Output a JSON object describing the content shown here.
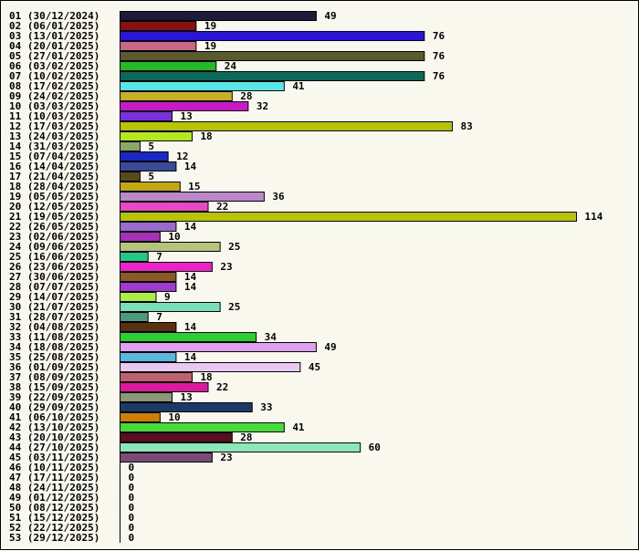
{
  "chart_data": {
    "type": "bar",
    "orientation": "horizontal",
    "title": "",
    "xlabel": "",
    "ylabel": "",
    "xlim": [
      0,
      114
    ],
    "grid": false,
    "legend": "none",
    "categories": [
      "01 (30/12/2024)",
      "02 (06/01/2025)",
      "03 (13/01/2025)",
      "04 (20/01/2025)",
      "05 (27/01/2025)",
      "06 (03/02/2025)",
      "07 (10/02/2025)",
      "08 (17/02/2025)",
      "09 (24/02/2025)",
      "10 (03/03/2025)",
      "11 (10/03/2025)",
      "12 (17/03/2025)",
      "13 (24/03/2025)",
      "14 (31/03/2025)",
      "15 (07/04/2025)",
      "16 (14/04/2025)",
      "17 (21/04/2025)",
      "18 (28/04/2025)",
      "19 (05/05/2025)",
      "20 (12/05/2025)",
      "21 (19/05/2025)",
      "22 (26/05/2025)",
      "23 (02/06/2025)",
      "24 (09/06/2025)",
      "25 (16/06/2025)",
      "26 (23/06/2025)",
      "27 (30/06/2025)",
      "28 (07/07/2025)",
      "29 (14/07/2025)",
      "30 (21/07/2025)",
      "31 (28/07/2025)",
      "32 (04/08/2025)",
      "33 (11/08/2025)",
      "34 (18/08/2025)",
      "35 (25/08/2025)",
      "36 (01/09/2025)",
      "37 (08/09/2025)",
      "38 (15/09/2025)",
      "39 (22/09/2025)",
      "40 (29/09/2025)",
      "41 (06/10/2025)",
      "42 (13/10/2025)",
      "43 (20/10/2025)",
      "44 (27/10/2025)",
      "45 (03/11/2025)",
      "46 (10/11/2025)",
      "47 (17/11/2025)",
      "48 (24/11/2025)",
      "49 (01/12/2025)",
      "50 (08/12/2025)",
      "51 (15/12/2025)",
      "52 (22/12/2025)",
      "53 (29/12/2025)"
    ],
    "values": [
      49,
      19,
      76,
      19,
      76,
      24,
      76,
      41,
      28,
      32,
      13,
      83,
      18,
      5,
      12,
      14,
      5,
      15,
      36,
      22,
      114,
      14,
      10,
      25,
      7,
      23,
      14,
      14,
      9,
      25,
      7,
      14,
      34,
      49,
      14,
      45,
      18,
      22,
      13,
      33,
      10,
      41,
      28,
      60,
      23,
      0,
      0,
      0,
      0,
      0,
      0,
      0,
      0
    ],
    "colors": [
      "#1c1c3a",
      "#8b1010",
      "#2a14e0",
      "#cc6688",
      "#5a5a2a",
      "#22bb22",
      "#0a6a5a",
      "#55e8e8",
      "#c8b020",
      "#c818c8",
      "#7a30e0",
      "#b8c400",
      "#b4e818",
      "#88aa66",
      "#1a28c8",
      "#3a4a98",
      "#5a4a1a",
      "#c4a810",
      "#bb88cc",
      "#e848c8",
      "#b8c400",
      "#9a6ad0",
      "#a830b8",
      "#b4c478",
      "#22c888",
      "#ee22cc",
      "#8a5a28",
      "#a03ad0",
      "#aaee44",
      "#78e0b8",
      "#4a9a80",
      "#5a3010",
      "#28d030",
      "#e0a0f0",
      "#58b8e0",
      "#e8c8f0",
      "#c06070",
      "#e018a0",
      "#8a9878",
      "#1a3a68",
      "#d08000",
      "#44dd33",
      "#5a0e1e",
      "#8ae8b8",
      "#7a4a78",
      "#888888",
      "#888888",
      "#888888",
      "#888888",
      "#888888",
      "#888888",
      "#888888",
      "#888888"
    ]
  }
}
